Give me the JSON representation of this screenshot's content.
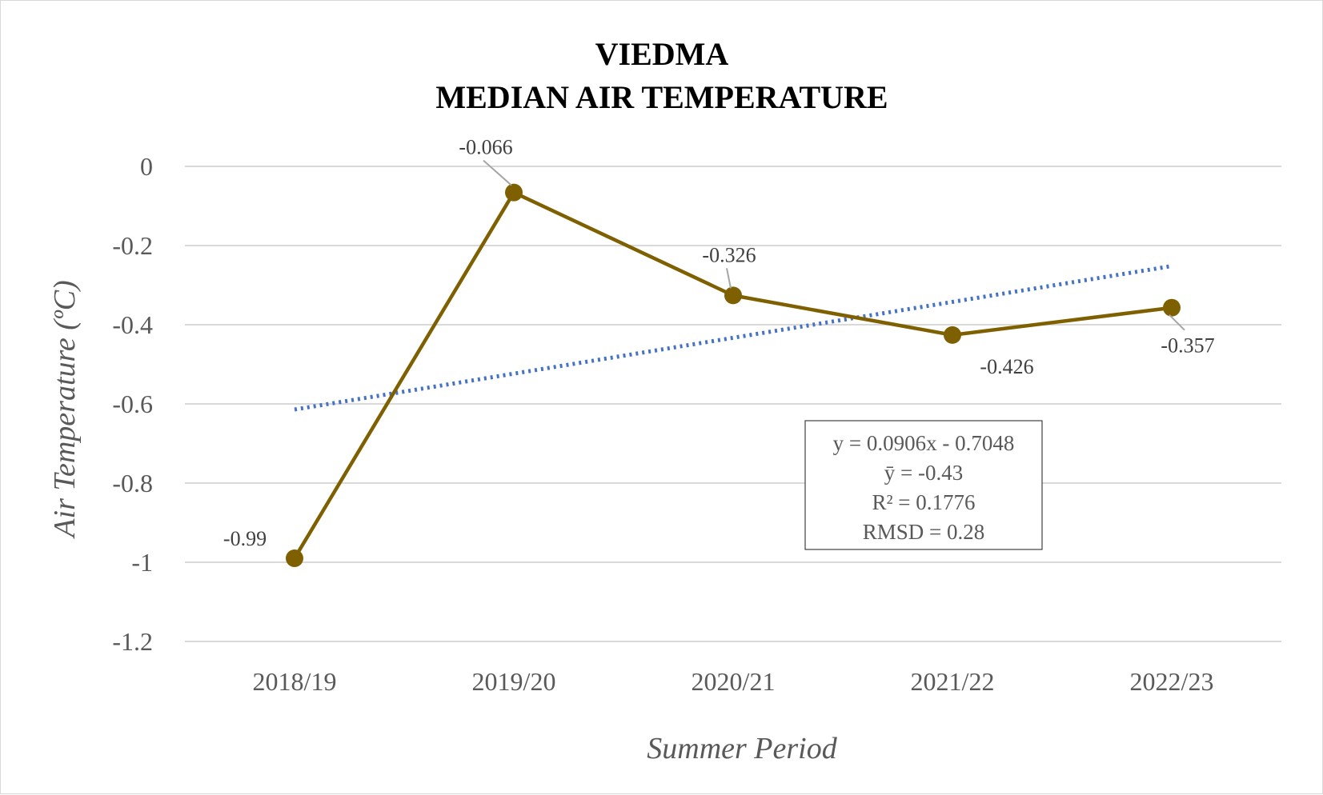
{
  "chart_data": {
    "type": "line",
    "title_lines": [
      "VIEDMA",
      "MEDIAN AIR TEMPERATURE"
    ],
    "xlabel": "Summer Period",
    "ylabel": "Air Temperature (ºC)",
    "categories": [
      "2018/19",
      "2019/20",
      "2020/21",
      "2021/22",
      "2022/23"
    ],
    "series": [
      {
        "values": [
          -0.99,
          -0.066,
          -0.326,
          -0.426,
          -0.357
        ],
        "color": "#7f6000"
      }
    ],
    "data_labels": [
      "-0.99",
      "-0.066",
      "-0.326",
      "-0.426",
      "-0.357"
    ],
    "trendline": {
      "type": "linear",
      "slope": 0.0906,
      "intercept": -0.7048,
      "color": "#4472c4",
      "style": "dotted"
    },
    "yticks": [
      "0",
      "-0.2",
      "-0.4",
      "-0.6",
      "-0.8",
      "-1",
      "-1.2"
    ],
    "ylim": [
      -1.2,
      0
    ],
    "grid": true,
    "legend": "none",
    "stats_box": [
      "y = 0.0906x - 0.7048",
      "ȳ = -0.43",
      "R² = 0.1776",
      "RMSD = 0.28"
    ]
  }
}
